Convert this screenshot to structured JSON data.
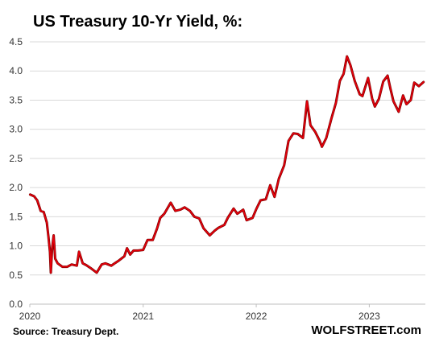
{
  "chart_data": {
    "type": "line",
    "title": "US Treasury  10-Yr Yield, %:",
    "xlabel": "",
    "ylabel": "",
    "ylim": [
      0.0,
      4.5
    ],
    "xlim": [
      "2020-01-01",
      "2023-07-01"
    ],
    "grid": true,
    "yticks": [
      "0.0",
      "0.5",
      "1.0",
      "1.5",
      "2.0",
      "2.5",
      "3.0",
      "3.5",
      "4.0",
      "4.5"
    ],
    "xticks": [
      "2020",
      "2021",
      "2022",
      "2023"
    ],
    "series": [
      {
        "color": "#e8000b",
        "x": [
          "2020-01-02",
          "2020-01-15",
          "2020-01-25",
          "2020-02-05",
          "2020-02-15",
          "2020-02-25",
          "2020-03-01",
          "2020-03-06",
          "2020-03-09",
          "2020-03-13",
          "2020-03-18",
          "2020-03-23",
          "2020-03-31",
          "2020-04-15",
          "2020-05-01",
          "2020-05-15",
          "2020-06-01",
          "2020-06-08",
          "2020-06-20",
          "2020-07-01",
          "2020-07-15",
          "2020-08-04",
          "2020-08-20",
          "2020-09-01",
          "2020-09-20",
          "2020-10-01",
          "2020-10-15",
          "2020-11-01",
          "2020-11-10",
          "2020-11-20",
          "2020-12-01",
          "2020-12-15",
          "2021-01-01",
          "2021-01-15",
          "2021-02-01",
          "2021-02-15",
          "2021-02-25",
          "2021-03-10",
          "2021-03-31",
          "2021-04-15",
          "2021-05-01",
          "2021-05-15",
          "2021-06-01",
          "2021-06-15",
          "2021-07-01",
          "2021-07-15",
          "2021-08-04",
          "2021-08-20",
          "2021-09-01",
          "2021-09-20",
          "2021-10-01",
          "2021-10-20",
          "2021-11-01",
          "2021-11-20",
          "2021-12-01",
          "2021-12-20",
          "2022-01-01",
          "2022-01-15",
          "2022-02-01",
          "2022-02-15",
          "2022-03-01",
          "2022-03-15",
          "2022-04-01",
          "2022-04-15",
          "2022-05-01",
          "2022-05-15",
          "2022-06-01",
          "2022-06-14",
          "2022-06-25",
          "2022-07-10",
          "2022-07-25",
          "2022-08-01",
          "2022-08-15",
          "2022-09-01",
          "2022-09-15",
          "2022-09-28",
          "2022-10-10",
          "2022-10-21",
          "2022-11-01",
          "2022-11-15",
          "2022-12-01",
          "2022-12-10",
          "2022-12-28",
          "2023-01-10",
          "2023-01-19",
          "2023-02-01",
          "2023-02-15",
          "2023-03-01",
          "2023-03-10",
          "2023-03-20",
          "2023-04-06",
          "2023-04-20",
          "2023-05-01",
          "2023-05-15",
          "2023-05-26",
          "2023-06-10",
          "2023-06-25"
        ],
        "y": [
          1.88,
          1.85,
          1.78,
          1.6,
          1.58,
          1.4,
          1.16,
          0.9,
          0.54,
          0.96,
          1.18,
          0.78,
          0.7,
          0.64,
          0.64,
          0.68,
          0.66,
          0.9,
          0.7,
          0.67,
          0.62,
          0.54,
          0.68,
          0.7,
          0.66,
          0.7,
          0.75,
          0.82,
          0.96,
          0.85,
          0.92,
          0.92,
          0.93,
          1.1,
          1.1,
          1.3,
          1.48,
          1.55,
          1.74,
          1.6,
          1.62,
          1.66,
          1.6,
          1.5,
          1.47,
          1.3,
          1.18,
          1.26,
          1.31,
          1.36,
          1.48,
          1.64,
          1.55,
          1.62,
          1.44,
          1.48,
          1.63,
          1.78,
          1.8,
          2.04,
          1.84,
          2.15,
          2.38,
          2.8,
          2.93,
          2.92,
          2.85,
          3.48,
          3.07,
          2.96,
          2.8,
          2.7,
          2.85,
          3.19,
          3.45,
          3.83,
          3.95,
          4.25,
          4.1,
          3.83,
          3.6,
          3.57,
          3.88,
          3.53,
          3.39,
          3.52,
          3.82,
          3.92,
          3.7,
          3.48,
          3.3,
          3.58,
          3.43,
          3.5,
          3.8,
          3.74,
          3.81
        ]
      }
    ]
  },
  "footer": {
    "source": "Source: Treasury Dept.",
    "brand": "WOLFSTREET.com"
  }
}
